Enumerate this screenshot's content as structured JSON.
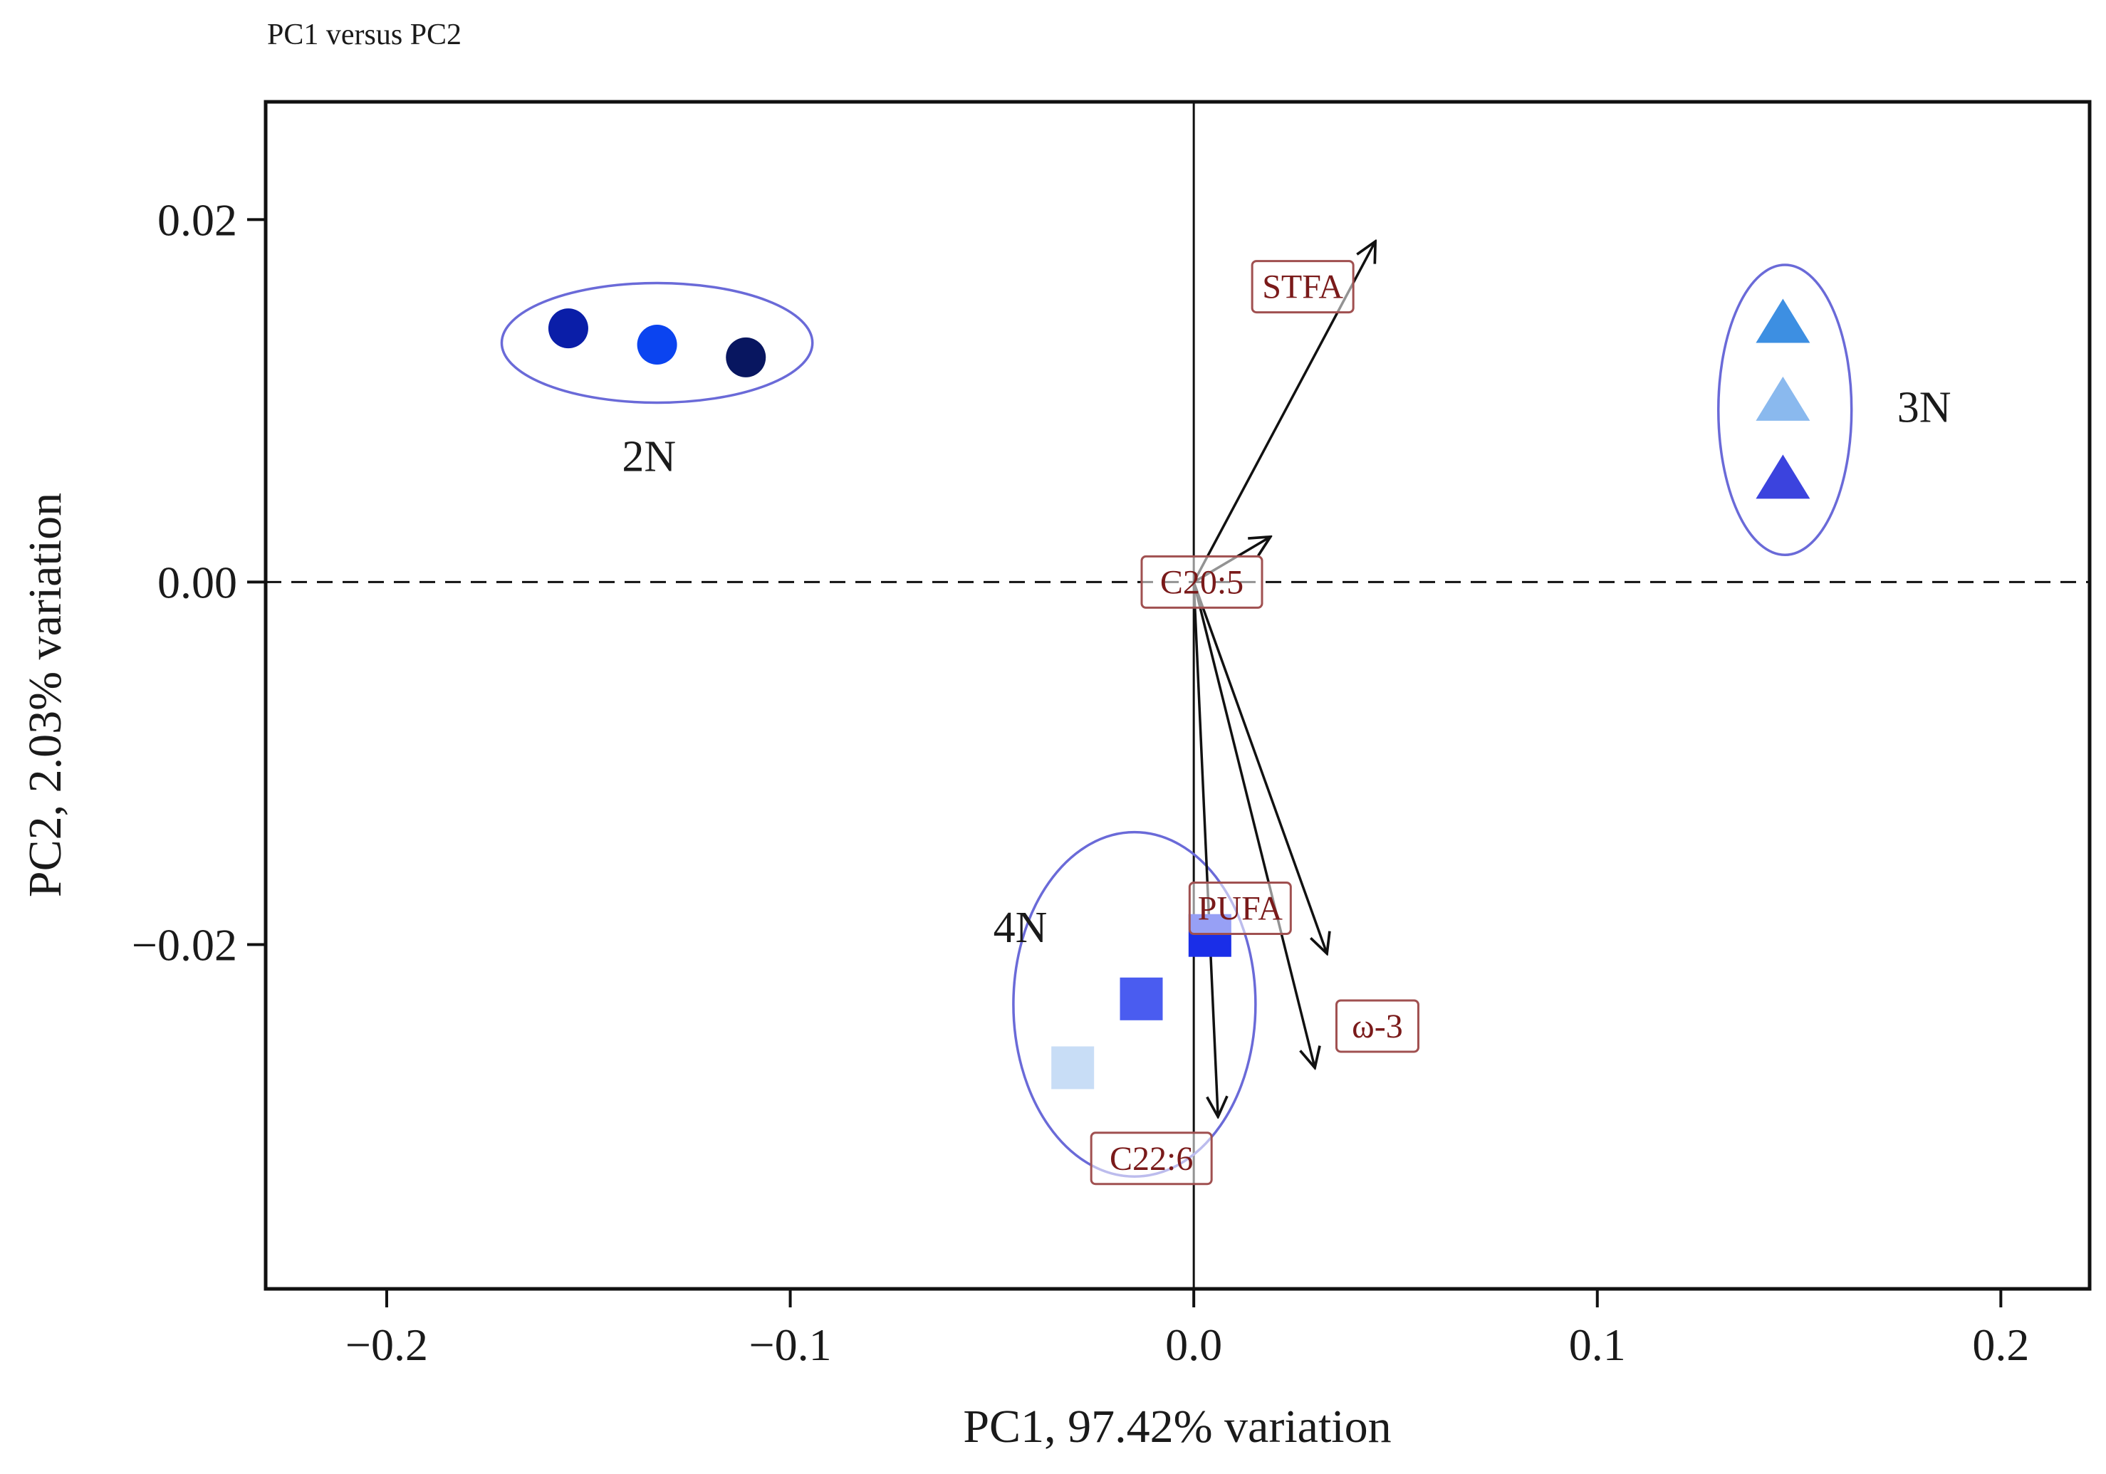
{
  "chart_data": {
    "type": "scatter",
    "title": "PC1 versus PC2",
    "xlabel": "PC1, 97.42% variation",
    "ylabel": "PC2, 2.03% variation",
    "xlim": [
      -0.23,
      0.222
    ],
    "ylim": [
      -0.039,
      0.0265
    ],
    "xticks": [
      -0.2,
      -0.1,
      0.0,
      0.1,
      0.2
    ],
    "xtick_labels": [
      "−0.2",
      "−0.1",
      "0.0",
      "0.1",
      "0.2"
    ],
    "yticks": [
      -0.02,
      0.0,
      0.02
    ],
    "ytick_labels": [
      "−0.02",
      "0.00",
      "0.02"
    ],
    "reference_lines": {
      "x0_style": "solid",
      "y0_style": "dashed"
    },
    "groups": [
      {
        "name": "2N",
        "marker": "circle",
        "points": [
          {
            "x": -0.155,
            "y": 0.014,
            "color": "#0a1ea8"
          },
          {
            "x": -0.133,
            "y": 0.0131,
            "color": "#0b44f0"
          },
          {
            "x": -0.111,
            "y": 0.0124,
            "color": "#081660"
          }
        ],
        "ellipse": {
          "cx": -0.133,
          "cy": 0.0132,
          "rx": 0.0385,
          "ry": 0.0033,
          "color": "#6a6ad8"
        },
        "label": {
          "text": "2N",
          "x": -0.135,
          "y": 0.007
        }
      },
      {
        "name": "3N",
        "marker": "triangle",
        "points": [
          {
            "x": 0.146,
            "y": 0.0143,
            "color": "#3d8fe2"
          },
          {
            "x": 0.146,
            "y": 0.01,
            "color": "#8ab9ee"
          },
          {
            "x": 0.146,
            "y": 0.0057,
            "color": "#3b43de"
          }
        ],
        "ellipse": {
          "cx": 0.1465,
          "cy": 0.0095,
          "rx": 0.0165,
          "ry": 0.008,
          "color": "#6a6ad8"
        },
        "label": {
          "text": "3N",
          "x": 0.181,
          "y": 0.0097
        }
      },
      {
        "name": "4N",
        "marker": "square",
        "points": [
          {
            "x": 0.004,
            "y": -0.0195,
            "color": "#1a2ee8"
          },
          {
            "x": -0.013,
            "y": -0.023,
            "color": "#4a5cf0"
          },
          {
            "x": -0.03,
            "y": -0.0268,
            "color": "#c8ddf6"
          }
        ],
        "ellipse": {
          "cx": -0.0147,
          "cy": -0.0233,
          "rx": 0.03,
          "ry": 0.0095,
          "color": "#6a6ad8"
        },
        "label": {
          "text": "4N",
          "x": -0.043,
          "y": -0.019
        }
      }
    ],
    "vectors": [
      {
        "name": "STFA",
        "x": 0.045,
        "y": 0.0188,
        "label_x": 0.027,
        "label_y": 0.0163
      },
      {
        "name": "C20:5",
        "x": 0.019,
        "y": 0.0025,
        "label_x": 0.002,
        "label_y": 0.0
      },
      {
        "name": "PUFA",
        "x": 0.033,
        "y": -0.0205,
        "label_x": 0.0115,
        "label_y": -0.018
      },
      {
        "name": "ω-3",
        "x": 0.03,
        "y": -0.0268,
        "label_x": 0.0455,
        "label_y": -0.0245
      },
      {
        "name": "C22:6",
        "x": 0.006,
        "y": -0.0295,
        "label_x": -0.0105,
        "label_y": -0.0318
      }
    ],
    "legend": "none"
  },
  "colors": {
    "axis": "#111111",
    "vector": "#111111",
    "vector_label_text": "#7a1a1a",
    "vector_label_border": "#a05050"
  }
}
